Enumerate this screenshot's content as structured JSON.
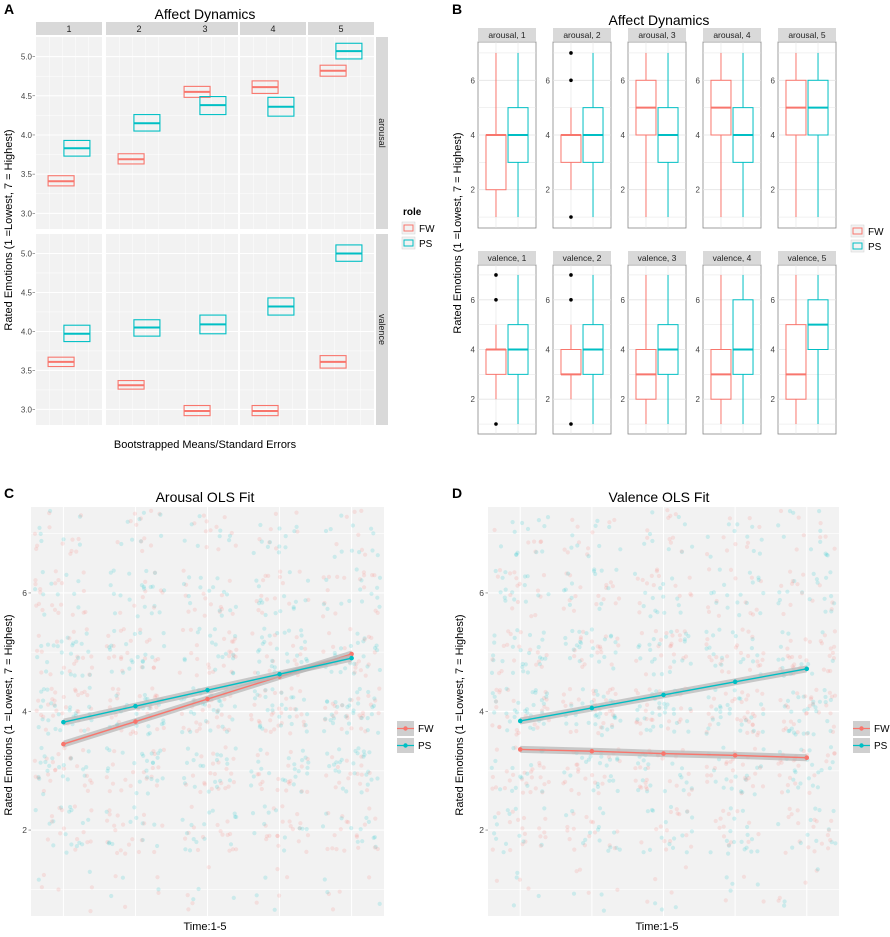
{
  "colors": {
    "fw": "#F8766D",
    "ps": "#00BFC4",
    "panel_bg": "#F2F2F2",
    "strip_bg": "#D9D9D9",
    "grid": "#E3E3E3",
    "ribbon": "#B5B5B5"
  },
  "panel_a": {
    "letter": "A",
    "title": "Affect Dynamics",
    "xlabel": "Bootstrapped Means/Standard Errors",
    "ylabel": "Rated Emotions (1 =Lowest, 7 = Highest)",
    "legend_title": "role",
    "legend_items": [
      "FW",
      "PS"
    ]
  },
  "panel_b": {
    "letter": "B",
    "title": "Affect Dynamics",
    "ylabel": "Rated Emotions (1 =Lowest, 7 = Highest)",
    "legend_items": [
      "FW",
      "PS"
    ]
  },
  "panel_c": {
    "letter": "C",
    "title": "Arousal OLS Fit",
    "xlabel": "Time:1-5",
    "ylabel": "Rated Emotions (1 =Lowest, 7 = Highest)",
    "legend_items": [
      "FW",
      "PS"
    ]
  },
  "panel_d": {
    "letter": "D",
    "title": "Valence OLS Fit",
    "xlabel": "Time:1-5",
    "ylabel": "Rated Emotions (1 =Lowest, 7 = Highest)",
    "legend_items": [
      "FW",
      "PS"
    ]
  },
  "chart_data": [
    {
      "id": "A",
      "type": "crossbar",
      "title": "Affect Dynamics",
      "xlabel": "Bootstrapped Means/Standard Errors",
      "ylabel": "Rated Emotions (1 =Lowest, 7 = Highest)",
      "facet_cols": [
        "1",
        "2",
        "3",
        "4",
        "5"
      ],
      "facet_rows": [
        "arousal",
        "valence"
      ],
      "legend_title": "role",
      "rows": [
        {
          "name": "arousal",
          "ylim": [
            2.8,
            5.25
          ],
          "yticks": [
            3.0,
            3.5,
            4.0,
            4.5,
            5.0
          ],
          "ytick_labels": [
            "3.0",
            "3.5",
            "4.0",
            "4.5",
            "5.0"
          ],
          "series": [
            {
              "name": "FW",
              "mean": [
                3.41,
                3.69,
                4.55,
                4.61,
                4.82
              ],
              "lo": [
                3.35,
                3.63,
                4.48,
                4.53,
                4.75
              ],
              "hi": [
                3.48,
                3.76,
                4.62,
                4.69,
                4.89
              ]
            },
            {
              "name": "PS",
              "mean": [
                3.83,
                4.15,
                4.38,
                4.36,
                5.07
              ],
              "lo": [
                3.73,
                4.05,
                4.26,
                4.24,
                4.97
              ],
              "hi": [
                3.93,
                4.26,
                4.49,
                4.48,
                5.17
              ]
            }
          ]
        },
        {
          "name": "valence",
          "ylim": [
            2.8,
            5.25
          ],
          "yticks": [
            3.0,
            3.5,
            4.0,
            4.5,
            5.0
          ],
          "ytick_labels": [
            "3.0",
            "3.5",
            "4.0",
            "4.5",
            "5.0"
          ],
          "series": [
            {
              "name": "FW",
              "mean": [
                3.61,
                3.31,
                2.98,
                2.98,
                3.61
              ],
              "lo": [
                3.55,
                3.26,
                2.92,
                2.92,
                3.53
              ],
              "hi": [
                3.67,
                3.37,
                3.05,
                3.05,
                3.69
              ]
            },
            {
              "name": "PS",
              "mean": [
                3.97,
                4.05,
                4.09,
                4.32,
                5.0
              ],
              "lo": [
                3.87,
                3.94,
                3.97,
                4.21,
                4.9
              ],
              "hi": [
                4.08,
                4.15,
                4.21,
                4.43,
                5.11
              ]
            }
          ]
        }
      ]
    },
    {
      "id": "B",
      "type": "boxplot",
      "title": "Affect Dynamics",
      "ylabel": "Rated Emotions (1 =Lowest, 7 = Highest)",
      "ylim": [
        0.6,
        7.4
      ],
      "yticks": [
        2,
        4,
        6
      ],
      "legend": [
        "FW",
        "PS"
      ],
      "facets": [
        {
          "label": "arousal, 1",
          "FW": {
            "min": 1,
            "q1": 2,
            "med": 4,
            "q3": 4,
            "max": 7,
            "outliers": []
          },
          "PS": {
            "min": 1,
            "q1": 3,
            "med": 4,
            "q3": 5,
            "max": 7,
            "outliers": []
          }
        },
        {
          "label": "arousal, 2",
          "FW": {
            "min": 2,
            "q1": 3,
            "med": 4,
            "q3": 4,
            "max": 5,
            "outliers": [
              1,
              6,
              7
            ]
          },
          "PS": {
            "min": 1,
            "q1": 3,
            "med": 4,
            "q3": 5,
            "max": 7,
            "outliers": []
          }
        },
        {
          "label": "arousal, 3",
          "FW": {
            "min": 1,
            "q1": 4,
            "med": 5,
            "q3": 6,
            "max": 7,
            "outliers": []
          },
          "PS": {
            "min": 1,
            "q1": 3,
            "med": 4,
            "q3": 5,
            "max": 7,
            "outliers": []
          }
        },
        {
          "label": "arousal, 4",
          "FW": {
            "min": 1,
            "q1": 4,
            "med": 5,
            "q3": 6,
            "max": 7,
            "outliers": []
          },
          "PS": {
            "min": 1,
            "q1": 3,
            "med": 4,
            "q3": 5,
            "max": 7,
            "outliers": []
          }
        },
        {
          "label": "arousal, 5",
          "FW": {
            "min": 1,
            "q1": 4,
            "med": 5,
            "q3": 6,
            "max": 7,
            "outliers": []
          },
          "PS": {
            "min": 1,
            "q1": 4,
            "med": 5,
            "q3": 6,
            "max": 7,
            "outliers": []
          }
        },
        {
          "label": "valence, 1",
          "FW": {
            "min": 2,
            "q1": 3,
            "med": 4,
            "q3": 4,
            "max": 5,
            "outliers": [
              1,
              6,
              7
            ]
          },
          "PS": {
            "min": 1,
            "q1": 3,
            "med": 4,
            "q3": 5,
            "max": 7,
            "outliers": []
          }
        },
        {
          "label": "valence, 2",
          "FW": {
            "min": 2,
            "q1": 3,
            "med": 3,
            "q3": 4,
            "max": 5,
            "outliers": [
              1,
              6,
              7
            ]
          },
          "PS": {
            "min": 1,
            "q1": 3,
            "med": 4,
            "q3": 5,
            "max": 7,
            "outliers": []
          }
        },
        {
          "label": "valence, 3",
          "FW": {
            "min": 1,
            "q1": 2,
            "med": 3,
            "q3": 4,
            "max": 7,
            "outliers": []
          },
          "PS": {
            "min": 1,
            "q1": 3,
            "med": 4,
            "q3": 5,
            "max": 7,
            "outliers": []
          }
        },
        {
          "label": "valence, 4",
          "FW": {
            "min": 1,
            "q1": 2,
            "med": 3,
            "q3": 4,
            "max": 7,
            "outliers": []
          },
          "PS": {
            "min": 1,
            "q1": 3,
            "med": 4,
            "q3": 6,
            "max": 7,
            "outliers": []
          }
        },
        {
          "label": "valence, 5",
          "FW": {
            "min": 1,
            "q1": 2,
            "med": 3,
            "q3": 5,
            "max": 7,
            "outliers": []
          },
          "PS": {
            "min": 1,
            "q1": 4,
            "med": 5,
            "q3": 6,
            "max": 7,
            "outliers": []
          }
        }
      ]
    },
    {
      "id": "C",
      "type": "scatter+line",
      "title": "Arousal OLS Fit",
      "xlabel": "Time:1-5",
      "ylabel": "Rated Emotions (1 =Lowest, 7 = Highest)",
      "xlim": [
        0.55,
        5.45
      ],
      "ylim": [
        0.55,
        7.45
      ],
      "yticks": [
        2,
        4,
        6
      ],
      "x": [
        1,
        2,
        3,
        4,
        5
      ],
      "series": [
        {
          "name": "FW",
          "fit": [
            3.45,
            3.83,
            4.21,
            4.59,
            4.97
          ]
        },
        {
          "name": "PS",
          "fit": [
            3.82,
            4.09,
            4.36,
            4.63,
            4.9
          ]
        }
      ]
    },
    {
      "id": "D",
      "type": "scatter+line",
      "title": "Valence OLS Fit",
      "xlabel": "Time:1-5",
      "ylabel": "Rated Emotions (1 =Lowest, 7 = Highest)",
      "xlim": [
        0.55,
        5.45
      ],
      "ylim": [
        0.55,
        7.45
      ],
      "yticks": [
        2,
        4,
        6
      ],
      "x": [
        1,
        2,
        3,
        4,
        5
      ],
      "series": [
        {
          "name": "FW",
          "fit": [
            3.36,
            3.33,
            3.29,
            3.26,
            3.22
          ]
        },
        {
          "name": "PS",
          "fit": [
            3.84,
            4.06,
            4.28,
            4.5,
            4.72
          ]
        }
      ]
    }
  ]
}
